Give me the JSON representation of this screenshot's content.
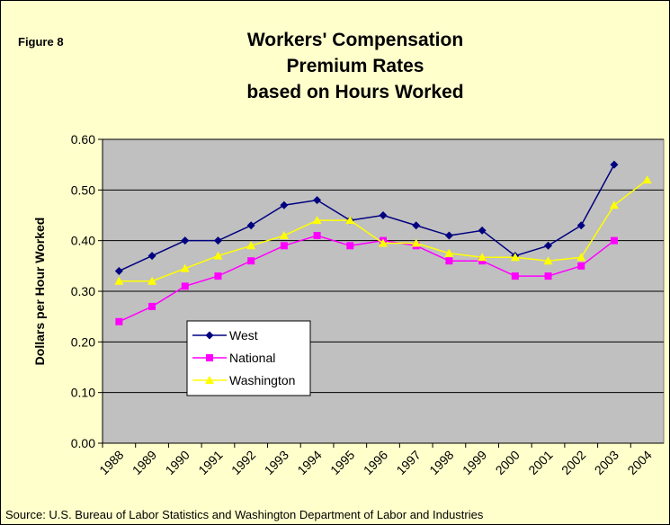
{
  "chart_data": {
    "type": "line",
    "figure_label": "Figure 8",
    "title": [
      "Workers' Compensation",
      "Premium Rates",
      "based on Hours Worked"
    ],
    "y_label": "Dollars per Hour Worked",
    "source": "Source: U.S. Bureau of Labor Statistics and Washington Department of Labor and Industries",
    "categories": [
      "1988",
      "1989",
      "1990",
      "1991",
      "1992",
      "1993",
      "1994",
      "1995",
      "1996",
      "1997",
      "1998",
      "1999",
      "2000",
      "2001",
      "2002",
      "2003",
      "2004"
    ],
    "series": [
      {
        "name": "West",
        "color": "#000080",
        "marker": "diamond",
        "values": [
          0.34,
          0.37,
          0.4,
          0.4,
          0.43,
          0.47,
          0.48,
          0.44,
          0.45,
          0.43,
          0.41,
          0.42,
          0.37,
          0.39,
          0.43,
          0.55,
          null
        ]
      },
      {
        "name": "National",
        "color": "#ff00ff",
        "marker": "square",
        "values": [
          0.24,
          0.27,
          0.31,
          0.33,
          0.36,
          0.39,
          0.41,
          0.39,
          0.4,
          0.39,
          0.36,
          0.36,
          0.33,
          0.33,
          0.35,
          0.4,
          null
        ]
      },
      {
        "name": "Washington",
        "color": "#ffff00",
        "marker": "triangle",
        "values": [
          0.32,
          0.32,
          0.345,
          0.37,
          0.39,
          0.41,
          0.44,
          0.44,
          0.395,
          0.395,
          0.375,
          0.367,
          0.367,
          0.36,
          0.367,
          0.47,
          0.52
        ]
      }
    ],
    "ylim": [
      0,
      0.6
    ],
    "yticks": [
      {
        "value": 0,
        "label": "0.00"
      },
      {
        "value": 0.1,
        "label": "0.10"
      },
      {
        "value": 0.2,
        "label": "0.20"
      },
      {
        "value": 0.3,
        "label": "0.30"
      },
      {
        "value": 0.4,
        "label": "0.40"
      },
      {
        "value": 0.5,
        "label": "0.50"
      },
      {
        "value": 0.6,
        "label": "0.60"
      }
    ],
    "grid": true
  }
}
